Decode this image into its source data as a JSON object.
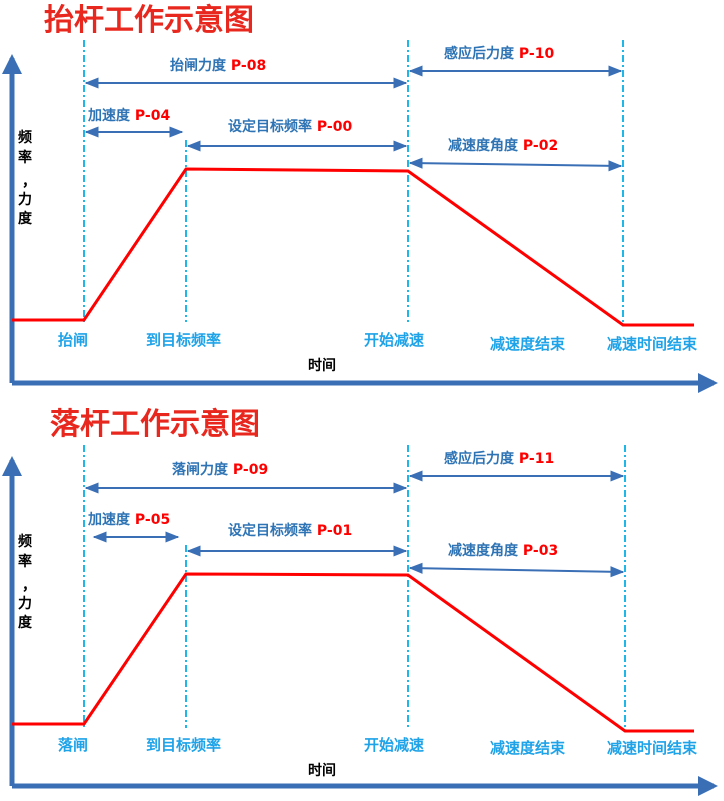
{
  "colors": {
    "title": "#e8281e",
    "axis": "#3a6fb5",
    "curve": "#ff0000",
    "guide": "#1fb6e8",
    "arrow": "#3a6fb5",
    "param_text": "#2e74b5",
    "param_code": "#ff0000",
    "event_text": "#1fa3e8"
  },
  "diagrams": [
    {
      "title": "抬杆工作示意图",
      "y_axis_label": [
        "频",
        "率",
        "，",
        "力",
        "度"
      ],
      "x_axis_label": "时间",
      "params": {
        "gate_force": {
          "text": "抬闸力度 ",
          "code": "P-08"
        },
        "sensing_force": {
          "text": "感应后力度 ",
          "code": "P-10"
        },
        "accel": {
          "text": "加速度 ",
          "code": "P-04"
        },
        "target_freq": {
          "text": "设定目标频率 ",
          "code": "P-00"
        },
        "decel_angle": {
          "text": "减速度角度 ",
          "code": "P-02"
        }
      },
      "events": {
        "start": "抬闸",
        "reach_target": "到目标频率",
        "start_decel": "开始减速",
        "decel_end": "减速度结束",
        "decel_time_end": "减速时间结束"
      }
    },
    {
      "title": "落杆工作示意图",
      "y_axis_label": [
        "频",
        "率",
        "，",
        "力",
        "度"
      ],
      "x_axis_label": "时间",
      "params": {
        "gate_force": {
          "text": "落闸力度 ",
          "code": "P-09"
        },
        "sensing_force": {
          "text": "感应后力度 ",
          "code": "P-11"
        },
        "accel": {
          "text": "加速度 ",
          "code": "P-05"
        },
        "target_freq": {
          "text": "设定目标频率 ",
          "code": "P-01"
        },
        "decel_angle": {
          "text": "减速度角度 ",
          "code": "P-03"
        }
      },
      "events": {
        "start": "落闸",
        "reach_target": "到目标频率",
        "start_decel": "开始减速",
        "decel_end": "减速度结束",
        "decel_time_end": "减速时间结束"
      }
    }
  ]
}
